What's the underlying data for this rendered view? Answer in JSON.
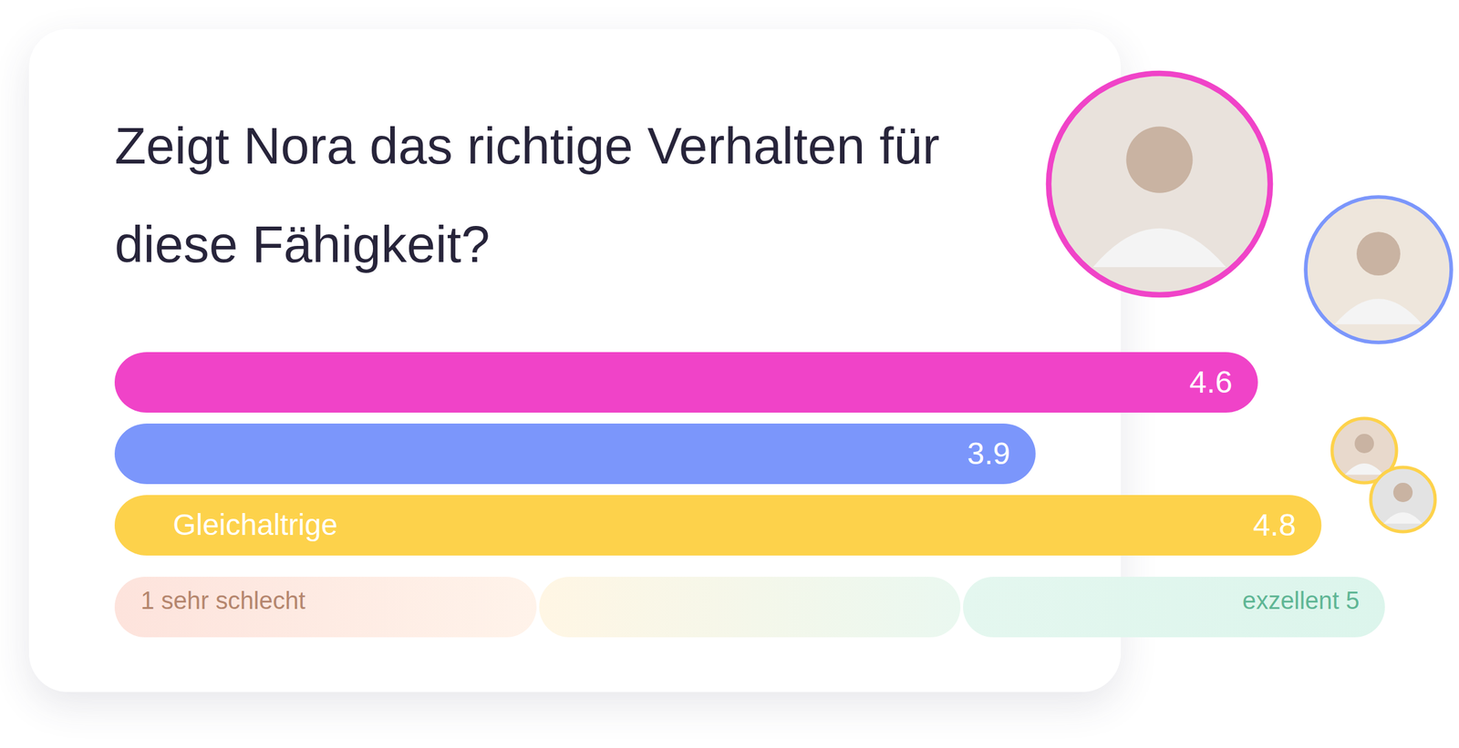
{
  "chart_data": {
    "type": "bar",
    "orientation": "horizontal",
    "title": "Zeigt Nora das richtige Verhalten für diese Fähigkeit?",
    "categories": [
      null,
      null,
      "Gleichaltrige"
    ],
    "values": [
      4.6,
      3.9,
      4.8
    ],
    "colors": [
      "#f043c8",
      "#7b96fb",
      "#fdd24b"
    ],
    "xlim": [
      1,
      5
    ],
    "xticks": [
      {
        "value": 1,
        "label": "1 sehr schlecht"
      },
      {
        "value": 5,
        "label": "exzellent 5"
      }
    ],
    "data_labels": true,
    "grid": false
  }
}
